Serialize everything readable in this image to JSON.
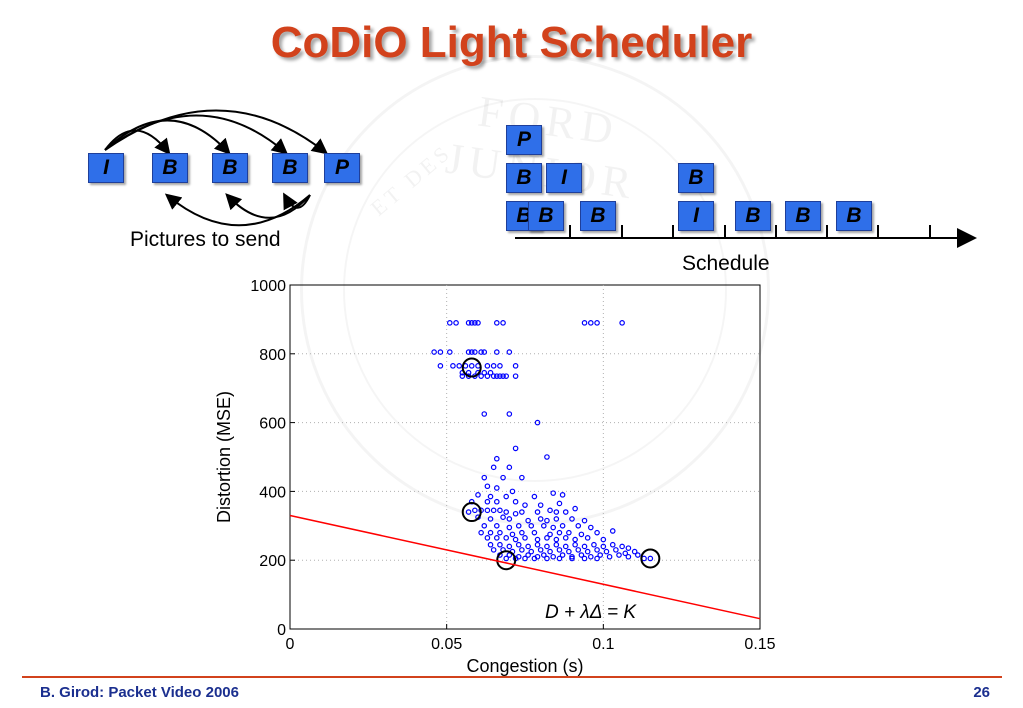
{
  "slide": {
    "title": "CoDiO Light Scheduler",
    "pictures_caption": "Pictures to send",
    "schedule_caption": "Schedule",
    "footer_left": "B. Girod: Packet Video 2006",
    "page_number": "26",
    "watermark_text": "FORD JUNIOR",
    "watermark_sub": "ET DES"
  },
  "pictures_to_send": [
    "I",
    "B",
    "B",
    "B",
    "P"
  ],
  "schedule_stack": {
    "col1": [
      "P",
      "B",
      "B"
    ],
    "col2": [
      "I",
      "B"
    ],
    "col3": [
      "B"
    ],
    "col6": [
      "B",
      "I"
    ],
    "col7": [
      "B"
    ],
    "col8": [
      "B"
    ],
    "col9": [
      "B"
    ]
  },
  "colors": {
    "title": "#d2421c",
    "box_fill": "#2f6fe9",
    "points": "#0000ff",
    "line": "#ff0000",
    "footer": "#1b2f8f"
  },
  "chart_data": {
    "type": "scatter",
    "xlabel": "Congestion (s)",
    "ylabel": "Distortion (MSE)",
    "xlim": [
      0,
      0.15
    ],
    "ylim": [
      0,
      1000
    ],
    "xticks": [
      "0",
      "0.05",
      "0.1",
      "0.15"
    ],
    "yticks": [
      "0",
      "200",
      "400",
      "600",
      "800",
      "1000"
    ],
    "grid": true,
    "annotation": "D + λΔ = K",
    "line": {
      "x": [
        0,
        0.15
      ],
      "y": [
        330,
        30
      ]
    },
    "circled_points": [
      [
        0.058,
        760
      ],
      [
        0.058,
        340
      ],
      [
        0.069,
        200
      ],
      [
        0.115,
        205
      ]
    ],
    "points": [
      [
        0.051,
        890
      ],
      [
        0.053,
        890
      ],
      [
        0.057,
        890
      ],
      [
        0.058,
        890
      ],
      [
        0.059,
        890
      ],
      [
        0.06,
        890
      ],
      [
        0.066,
        890
      ],
      [
        0.068,
        890
      ],
      [
        0.094,
        890
      ],
      [
        0.096,
        890
      ],
      [
        0.098,
        890
      ],
      [
        0.106,
        890
      ],
      [
        0.046,
        805
      ],
      [
        0.048,
        805
      ],
      [
        0.051,
        805
      ],
      [
        0.057,
        805
      ],
      [
        0.058,
        805
      ],
      [
        0.059,
        805
      ],
      [
        0.061,
        805
      ],
      [
        0.062,
        805
      ],
      [
        0.066,
        805
      ],
      [
        0.07,
        805
      ],
      [
        0.048,
        765
      ],
      [
        0.052,
        765
      ],
      [
        0.054,
        765
      ],
      [
        0.056,
        765
      ],
      [
        0.058,
        765
      ],
      [
        0.06,
        765
      ],
      [
        0.063,
        765
      ],
      [
        0.065,
        765
      ],
      [
        0.067,
        765
      ],
      [
        0.072,
        765
      ],
      [
        0.055,
        745
      ],
      [
        0.057,
        745
      ],
      [
        0.06,
        745
      ],
      [
        0.062,
        745
      ],
      [
        0.064,
        745
      ],
      [
        0.055,
        735
      ],
      [
        0.057,
        735
      ],
      [
        0.059,
        735
      ],
      [
        0.061,
        735
      ],
      [
        0.063,
        735
      ],
      [
        0.065,
        735
      ],
      [
        0.066,
        735
      ],
      [
        0.067,
        735
      ],
      [
        0.068,
        735
      ],
      [
        0.069,
        735
      ],
      [
        0.072,
        735
      ],
      [
        0.062,
        625
      ],
      [
        0.07,
        625
      ],
      [
        0.079,
        600
      ],
      [
        0.072,
        525
      ],
      [
        0.082,
        500
      ],
      [
        0.066,
        495
      ],
      [
        0.065,
        470
      ],
      [
        0.07,
        470
      ],
      [
        0.062,
        440
      ],
      [
        0.068,
        440
      ],
      [
        0.074,
        440
      ],
      [
        0.063,
        415
      ],
      [
        0.066,
        410
      ],
      [
        0.071,
        400
      ],
      [
        0.084,
        395
      ],
      [
        0.06,
        390
      ],
      [
        0.064,
        385
      ],
      [
        0.069,
        385
      ],
      [
        0.078,
        385
      ],
      [
        0.087,
        390
      ],
      [
        0.058,
        370
      ],
      [
        0.063,
        370
      ],
      [
        0.066,
        370
      ],
      [
        0.072,
        370
      ],
      [
        0.075,
        360
      ],
      [
        0.08,
        360
      ],
      [
        0.086,
        365
      ],
      [
        0.091,
        350
      ],
      [
        0.057,
        340
      ],
      [
        0.059,
        345
      ],
      [
        0.061,
        345
      ],
      [
        0.063,
        345
      ],
      [
        0.065,
        345
      ],
      [
        0.067,
        345
      ],
      [
        0.069,
        340
      ],
      [
        0.072,
        335
      ],
      [
        0.074,
        340
      ],
      [
        0.079,
        340
      ],
      [
        0.083,
        345
      ],
      [
        0.085,
        340
      ],
      [
        0.088,
        340
      ],
      [
        0.06,
        325
      ],
      [
        0.064,
        320
      ],
      [
        0.068,
        325
      ],
      [
        0.07,
        320
      ],
      [
        0.076,
        315
      ],
      [
        0.08,
        320
      ],
      [
        0.082,
        315
      ],
      [
        0.085,
        320
      ],
      [
        0.09,
        320
      ],
      [
        0.094,
        315
      ],
      [
        0.062,
        300
      ],
      [
        0.066,
        300
      ],
      [
        0.07,
        295
      ],
      [
        0.073,
        300
      ],
      [
        0.077,
        300
      ],
      [
        0.081,
        300
      ],
      [
        0.084,
        295
      ],
      [
        0.087,
        300
      ],
      [
        0.092,
        300
      ],
      [
        0.096,
        295
      ],
      [
        0.061,
        280
      ],
      [
        0.064,
        280
      ],
      [
        0.067,
        280
      ],
      [
        0.071,
        275
      ],
      [
        0.074,
        280
      ],
      [
        0.078,
        280
      ],
      [
        0.083,
        275
      ],
      [
        0.086,
        280
      ],
      [
        0.089,
        280
      ],
      [
        0.093,
        275
      ],
      [
        0.098,
        280
      ],
      [
        0.103,
        285
      ],
      [
        0.063,
        265
      ],
      [
        0.066,
        265
      ],
      [
        0.069,
        265
      ],
      [
        0.072,
        260
      ],
      [
        0.075,
        265
      ],
      [
        0.079,
        260
      ],
      [
        0.082,
        265
      ],
      [
        0.085,
        260
      ],
      [
        0.088,
        265
      ],
      [
        0.091,
        260
      ],
      [
        0.095,
        265
      ],
      [
        0.1,
        260
      ],
      [
        0.064,
        245
      ],
      [
        0.067,
        245
      ],
      [
        0.07,
        240
      ],
      [
        0.073,
        245
      ],
      [
        0.076,
        240
      ],
      [
        0.079,
        245
      ],
      [
        0.082,
        240
      ],
      [
        0.085,
        245
      ],
      [
        0.088,
        240
      ],
      [
        0.091,
        245
      ],
      [
        0.094,
        240
      ],
      [
        0.097,
        245
      ],
      [
        0.1,
        240
      ],
      [
        0.103,
        245
      ],
      [
        0.106,
        240
      ],
      [
        0.108,
        235
      ],
      [
        0.065,
        230
      ],
      [
        0.068,
        230
      ],
      [
        0.071,
        225
      ],
      [
        0.074,
        230
      ],
      [
        0.077,
        225
      ],
      [
        0.08,
        230
      ],
      [
        0.083,
        225
      ],
      [
        0.086,
        230
      ],
      [
        0.089,
        225
      ],
      [
        0.092,
        230
      ],
      [
        0.095,
        225
      ],
      [
        0.098,
        230
      ],
      [
        0.101,
        225
      ],
      [
        0.104,
        230
      ],
      [
        0.107,
        220
      ],
      [
        0.11,
        225
      ],
      [
        0.067,
        215
      ],
      [
        0.07,
        215
      ],
      [
        0.073,
        210
      ],
      [
        0.076,
        215
      ],
      [
        0.079,
        210
      ],
      [
        0.081,
        215
      ],
      [
        0.084,
        210
      ],
      [
        0.087,
        215
      ],
      [
        0.09,
        210
      ],
      [
        0.093,
        215
      ],
      [
        0.096,
        210
      ],
      [
        0.099,
        215
      ],
      [
        0.102,
        210
      ],
      [
        0.105,
        215
      ],
      [
        0.108,
        210
      ],
      [
        0.111,
        215
      ],
      [
        0.069,
        205
      ],
      [
        0.072,
        205
      ],
      [
        0.075,
        205
      ],
      [
        0.078,
        205
      ],
      [
        0.082,
        205
      ],
      [
        0.086,
        205
      ],
      [
        0.09,
        205
      ],
      [
        0.094,
        205
      ],
      [
        0.098,
        205
      ],
      [
        0.113,
        205
      ],
      [
        0.115,
        205
      ]
    ]
  }
}
